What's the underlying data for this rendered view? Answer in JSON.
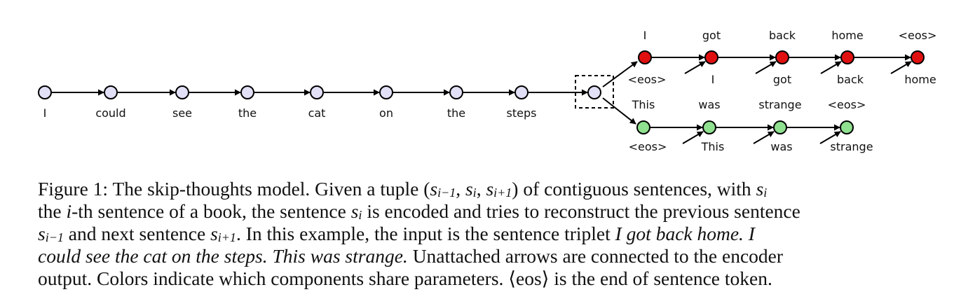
{
  "diagram": {
    "encoder_words": [
      "I",
      "could",
      "see",
      "the",
      "cat",
      "on",
      "the",
      "steps"
    ],
    "prev_decoder": {
      "outputs": [
        "I",
        "got",
        "back",
        "home",
        "<eos>"
      ],
      "inputs": [
        "<eos>",
        "I",
        "got",
        "back",
        "home"
      ],
      "color": "#e01010"
    },
    "next_decoder": {
      "outputs": [
        "This",
        "was",
        "strange",
        "<eos>"
      ],
      "inputs": [
        "<eos>",
        "This",
        "was",
        "strange"
      ],
      "color": "#8fe08f"
    },
    "encoder_color": "#e2e0f6"
  },
  "caption": {
    "l1_a": "Figure 1:  The skip-thoughts model. Given a tuple (",
    "l1_s1": "s",
    "l1_s1_sub": "i−1",
    "l1_c1": ", ",
    "l1_s2": "s",
    "l1_s2_sub": "i",
    "l1_c2": ", ",
    "l1_s3": "s",
    "l1_s3_sub": "i+1",
    "l1_b": ") of contiguous sentences, with ",
    "l1_s4": "s",
    "l1_s4_sub": "i",
    "l2_a": "the ",
    "l2_i": "i",
    "l2_b": "-th sentence of a book, the sentence ",
    "l2_s": "s",
    "l2_s_sub": "i",
    "l2_c": " is encoded and tries to reconstruct the previous sentence",
    "l3_s1": "s",
    "l3_s1_sub": "i−1",
    "l3_a": " and next sentence ",
    "l3_s2": "s",
    "l3_s2_sub": "i+1",
    "l3_b": ".  In this example, the input is the sentence triplet ",
    "l3_it": "I got back home.  I",
    "l4_it": "could see the cat on the steps.  This was strange.",
    "l4_b": "  Unattached arrows are connected to the encoder",
    "l5_a": "output. Colors indicate which components share parameters. ⟨eos⟩ is the end of sentence token."
  }
}
